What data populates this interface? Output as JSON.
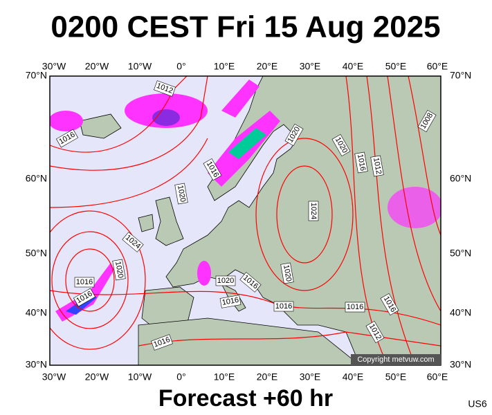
{
  "title": "0200 CEST Fri 15 Aug 2025",
  "footer": "Forecast +60 hr",
  "code": "US6",
  "copyright": "Copyright metvuw.com",
  "lon_labels": [
    "30°W",
    "20°W",
    "10°W",
    "0°",
    "10°E",
    "20°E",
    "30°E",
    "40°E",
    "50°E",
    "60°E"
  ],
  "lat_labels": [
    "70°N",
    "60°N",
    "50°N",
    "40°N",
    "30°N"
  ],
  "isobar_labels": [
    1012,
    1016,
    1016,
    1020,
    1020,
    1020,
    1016,
    1012,
    1008,
    1024,
    1024,
    1020,
    1016,
    1016,
    1020,
    1016,
    1020,
    1016,
    1016,
    1016,
    1016,
    1012,
    1016
  ]
}
